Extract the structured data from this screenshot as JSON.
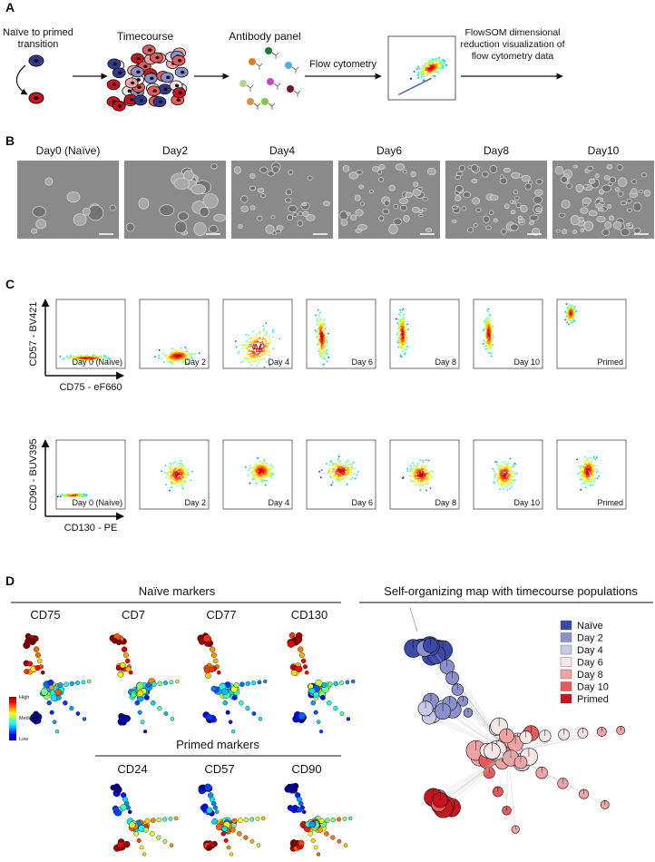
{
  "panels": {
    "A": {
      "label": "A",
      "start": "Naïve to primed transition",
      "timecourse": "Timecourse",
      "antibody": "Antibody panel",
      "flow": "Flow cytometry",
      "flowsom": "FlowSOM dimensional reduction visualization of flow cytometry data"
    },
    "B": {
      "label": "B",
      "days": [
        "Day0 (Naïve)",
        "Day2",
        "Day4",
        "Day6",
        "Day8",
        "Day10"
      ]
    },
    "C": {
      "label": "C",
      "rows": [
        {
          "y_label": "CD57 - BV421",
          "x_label": "CD75 - eF660",
          "plots": [
            "Day 0 (Naïve)",
            "Day 2",
            "Day 4",
            "Day 6",
            "Day 8",
            "Day 10",
            "Primed"
          ]
        },
        {
          "y_label": "CD90 - BUV395",
          "x_label": "CD130 - PE",
          "plots": [
            "Day 0 (Naïve)",
            "Day 2",
            "Day 4",
            "Day 6",
            "Day 8",
            "Day 10",
            "Primed"
          ]
        }
      ]
    },
    "D": {
      "label": "D",
      "naive_title": "Naïve markers",
      "naive_markers": [
        "CD75",
        "CD7",
        "CD77",
        "CD130"
      ],
      "primed_title": "Primed markers",
      "primed_markers": [
        "CD24",
        "CD57",
        "CD90"
      ],
      "scale": [
        "High",
        "Medium",
        "Low"
      ],
      "som_title": "Self-organizing map with timecourse populations",
      "legend": [
        {
          "name": "Naïve",
          "color": "#3b4aa8"
        },
        {
          "name": "Day 2",
          "color": "#8a90cc"
        },
        {
          "name": "Day 4",
          "color": "#c9cbe6"
        },
        {
          "name": "Day 6",
          "color": "#f6e6e6"
        },
        {
          "name": "Day 8",
          "color": "#f2a2a2"
        },
        {
          "name": "Day 10",
          "color": "#e85a5a"
        },
        {
          "name": "Primed",
          "color": "#c8141e"
        }
      ]
    }
  }
}
